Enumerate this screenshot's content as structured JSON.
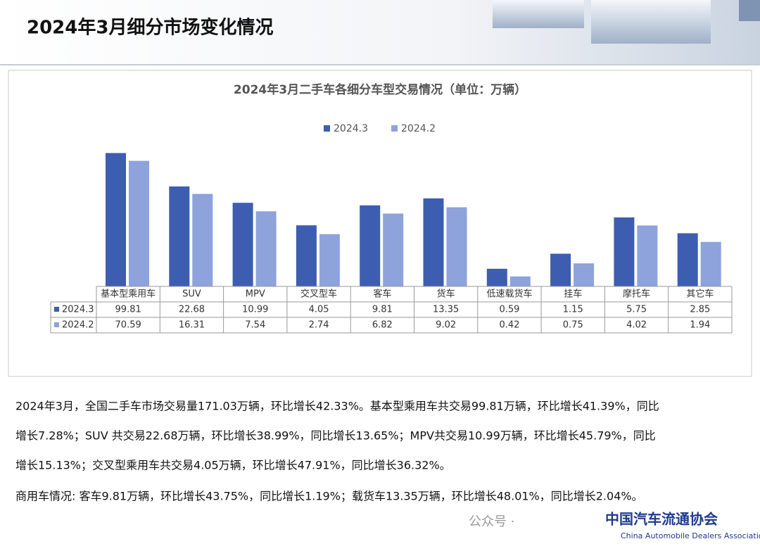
{
  "header": {
    "title": "2024年3月细分市场变化情况"
  },
  "chart_data": {
    "type": "bar",
    "title": "2024年3月二手车各细分车型交易情况（单位：万辆）",
    "categories": [
      "基本型乘用车",
      "SUV",
      "MPV",
      "交叉型车",
      "客车",
      "货车",
      "低速载货车",
      "挂车",
      "摩托车",
      "其它车"
    ],
    "series": [
      {
        "name": "2024.3",
        "color": "#3d5db0",
        "values": [
          99.81,
          22.68,
          10.99,
          4.05,
          9.81,
          13.35,
          0.59,
          1.15,
          5.75,
          2.85
        ]
      },
      {
        "name": "2024.2",
        "color": "#8ea2dc",
        "values": [
          70.59,
          16.31,
          7.54,
          2.74,
          6.82,
          9.02,
          0.42,
          0.75,
          4.02,
          1.94
        ]
      }
    ],
    "log_scale": true,
    "ylim": [
      0.27,
      130
    ],
    "legend": "top",
    "data_table": true
  },
  "text": {
    "lines": [
      "2024年3月，全国二手车市场交易量171.03万辆，环比增长42.33%。基本型乘用车共交易99.81万辆，环比增长41.39%，同比",
      "增长7.28%；SUV 共交易22.68万辆，环比增长38.99%，同比增长13.65%；MPV共交易10.99万辆，环比增长45.79%，同比",
      "增长15.13%；交叉型乘用车共交易4.05万辆，环比增长47.91%，同比增长36.32%。",
      "商用车情况: 客车9.81万辆，环比增长43.75%，同比增长1.19%；载货车13.35万辆，环比增长48.01%，同比增长2.04%。"
    ]
  },
  "footer": {
    "wechat": "公众号 ·",
    "org": "中国汽车流通协会",
    "org_en": "China Automobile Dealers Association"
  }
}
